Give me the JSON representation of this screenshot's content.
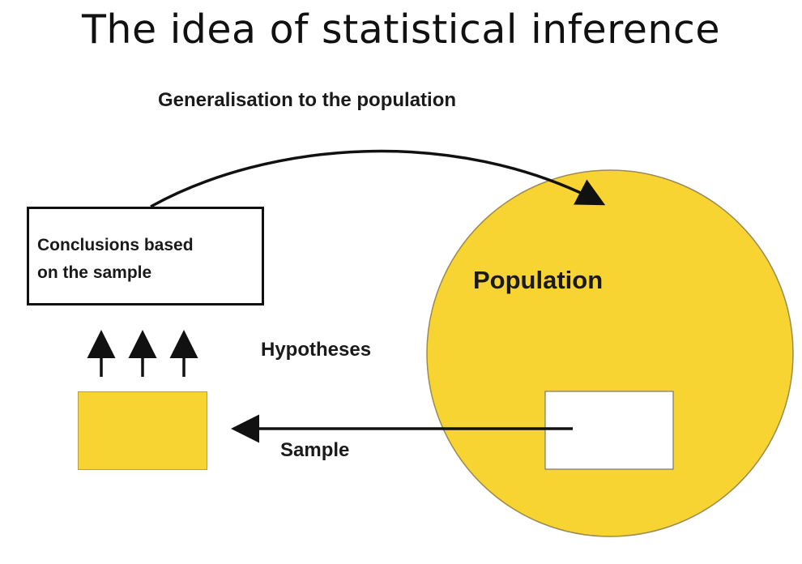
{
  "title": "The idea of statistical inference",
  "labels": {
    "generalisation": "Generalisation to the population",
    "hypotheses": "Hypotheses",
    "sample": "Sample",
    "population": "Population"
  },
  "conclusion_box": {
    "text_line1": "Conclusions based",
    "text_line2": "on the sample"
  },
  "colors": {
    "population_fill": "#f8d432",
    "sample_fill": "#f8d432",
    "outline": "#111111"
  }
}
